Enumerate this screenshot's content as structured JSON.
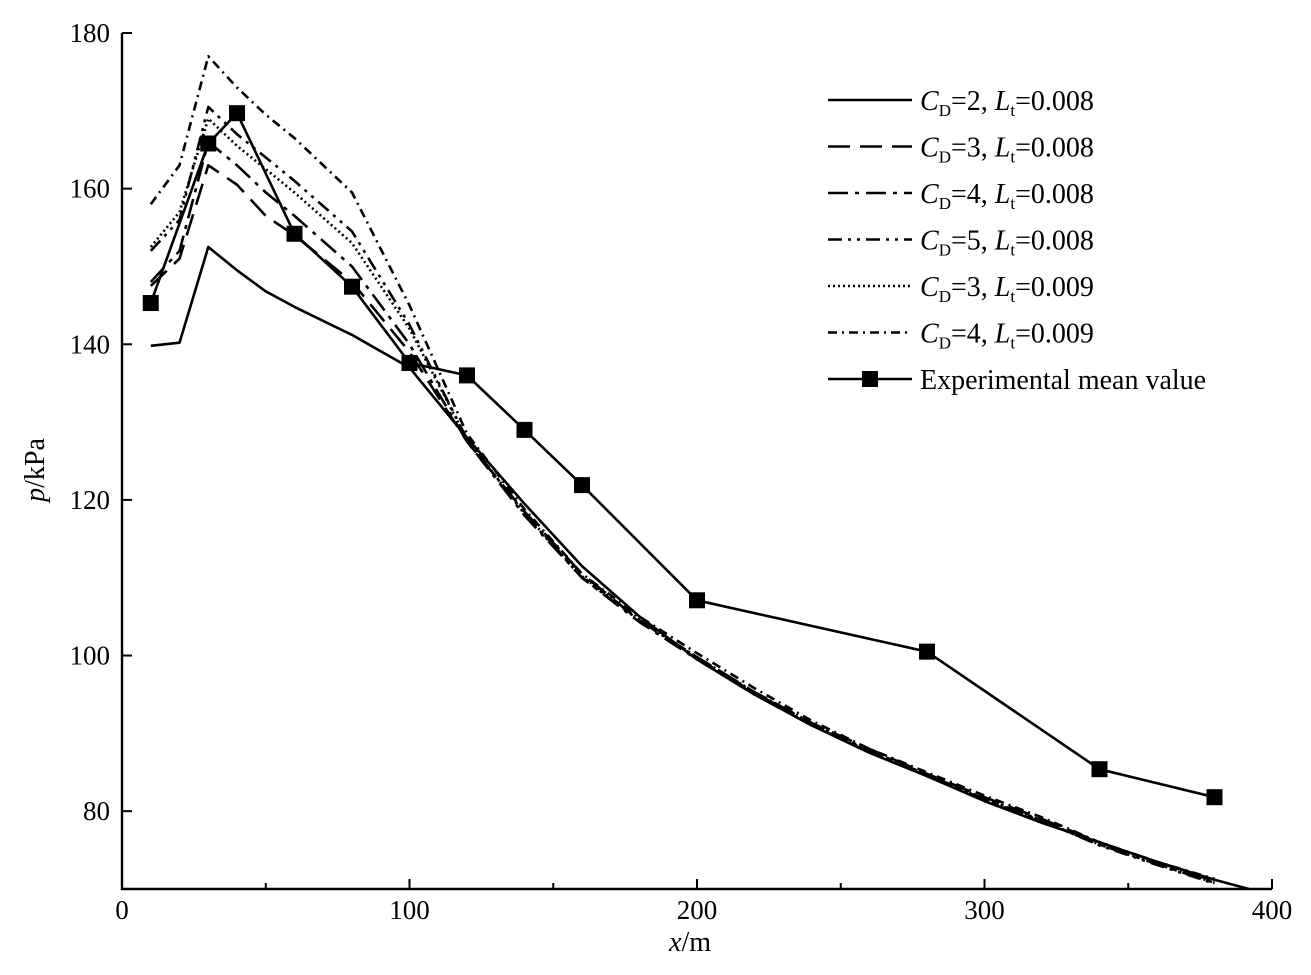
{
  "chart_data": {
    "type": "line",
    "title": "",
    "xlabel": "x/m",
    "xlabel_var": "x",
    "xlabel_unit": "/m",
    "ylabel": "p/kPa",
    "ylabel_var": "p",
    "ylabel_unit": "/kPa",
    "xlim": [
      0,
      400
    ],
    "ylim": [
      70,
      180
    ],
    "xticks": [
      "0",
      "100",
      "200",
      "300",
      "400"
    ],
    "xtick_values": [
      0,
      100,
      200,
      300,
      400
    ],
    "xminor_ticks": [
      50,
      150,
      250,
      350
    ],
    "yticks": [
      "80",
      "100",
      "120",
      "140",
      "160",
      "180"
    ],
    "ytick_values": [
      80,
      100,
      120,
      140,
      160,
      180
    ],
    "grid": false,
    "legend_position": "top-right",
    "series": [
      {
        "name": "CD=2, Lt=0.008",
        "label_parts": [
          "C",
          "D",
          "=2, ",
          "L",
          "t",
          "=0.008"
        ],
        "style": "solid",
        "x": [
          10,
          20,
          30,
          40,
          50,
          60,
          80,
          100,
          120,
          140,
          160,
          180,
          200,
          220,
          240,
          260,
          280,
          300,
          320,
          340,
          360,
          380,
          392
        ],
        "y": [
          139.8,
          140.2,
          152.5,
          149.5,
          146.8,
          144.8,
          141.2,
          137.0,
          128.0,
          119.5,
          111.5,
          105.0,
          99.5,
          95.0,
          91.0,
          87.5,
          84.5,
          81.3,
          78.5,
          76.0,
          73.5,
          71.2,
          70.0
        ]
      },
      {
        "name": "CD=3, Lt=0.008",
        "label_parts": [
          "C",
          "D",
          "=3, ",
          "L",
          "t",
          "=0.008"
        ],
        "style": "dashed",
        "x": [
          10,
          20,
          30,
          40,
          50,
          60,
          80,
          100,
          120,
          140,
          160,
          180,
          200,
          220,
          240,
          260,
          280,
          300,
          320,
          340,
          360,
          380
        ],
        "y": [
          147.5,
          151.0,
          163.0,
          160.5,
          156.5,
          154.0,
          148.0,
          139.0,
          127.5,
          118.5,
          110.5,
          104.5,
          99.8,
          95.3,
          91.3,
          88.0,
          84.8,
          81.8,
          79.0,
          76.0,
          73.5,
          71.0
        ]
      },
      {
        "name": "CD=4, Lt=0.008",
        "label_parts": [
          "C",
          "D",
          "=4, ",
          "L",
          "t",
          "=0.008"
        ],
        "style": "dashdot",
        "x": [
          10,
          20,
          30,
          40,
          50,
          60,
          80,
          100,
          120,
          140,
          160,
          180,
          200,
          220,
          240,
          260,
          280,
          300,
          320,
          340,
          360,
          380
        ],
        "y": [
          148.0,
          152.0,
          166.0,
          163.0,
          159.5,
          156.5,
          150.0,
          140.0,
          127.5,
          118.0,
          110.0,
          104.3,
          99.5,
          95.0,
          91.0,
          87.7,
          84.6,
          81.5,
          78.7,
          75.7,
          73.2,
          70.8
        ]
      },
      {
        "name": "CD=5, Lt=0.008",
        "label_parts": [
          "C",
          "D",
          "=5, ",
          "L",
          "t",
          "=0.008"
        ],
        "style": "dashdotdot",
        "x": [
          10,
          20,
          30,
          40,
          50,
          60,
          80,
          100,
          120,
          140,
          160,
          180,
          200,
          220,
          240,
          260,
          280,
          300,
          320,
          340,
          360,
          380
        ],
        "y": [
          152.0,
          156.0,
          170.5,
          167.0,
          164.0,
          161.0,
          154.5,
          142.5,
          127.8,
          118.2,
          110.0,
          104.5,
          99.7,
          95.2,
          91.2,
          87.8,
          84.7,
          81.6,
          78.8,
          75.6,
          73.1,
          70.7
        ]
      },
      {
        "name": "CD=3, Lt=0.009",
        "label_parts": [
          "C",
          "D",
          "=3, ",
          "L",
          "t",
          "=0.009"
        ],
        "style": "dotted",
        "x": [
          10,
          20,
          30,
          40,
          50,
          60,
          80,
          100,
          120,
          140,
          160,
          180,
          200,
          220,
          240,
          260,
          280,
          300,
          320,
          340,
          360,
          380
        ],
        "y": [
          152.5,
          157.0,
          169.0,
          165.5,
          162.5,
          159.5,
          153.0,
          142.0,
          127.8,
          118.3,
          110.2,
          104.6,
          99.8,
          95.3,
          91.3,
          87.8,
          84.7,
          81.6,
          78.8,
          75.7,
          73.2,
          70.8
        ]
      },
      {
        "name": "CD=4, Lt=0.009",
        "label_parts": [
          "C",
          "D",
          "=4, ",
          "L",
          "t",
          "=0.009"
        ],
        "style": "dashdot-fine",
        "x": [
          10,
          20,
          30,
          40,
          50,
          60,
          80,
          100,
          120,
          140,
          160,
          180,
          200,
          220,
          240,
          260,
          280,
          300,
          320,
          340,
          360,
          380
        ],
        "y": [
          158.0,
          163.0,
          177.0,
          173.0,
          169.5,
          166.5,
          159.5,
          145.0,
          128.5,
          118.8,
          110.5,
          105.0,
          100.3,
          95.8,
          91.6,
          88.0,
          85.0,
          82.0,
          79.2,
          76.0,
          73.5,
          71.3
        ]
      },
      {
        "name": "Experimental mean value",
        "label_parts": [
          "Experimental mean value"
        ],
        "style": "solid-square",
        "x": [
          10,
          30,
          40,
          60,
          80,
          100,
          120,
          140,
          160,
          200,
          280,
          340,
          380
        ],
        "y": [
          145.3,
          165.8,
          169.7,
          154.2,
          147.4,
          137.6,
          136.0,
          129.0,
          121.9,
          107.1,
          100.5,
          85.4,
          81.8
        ]
      }
    ]
  }
}
